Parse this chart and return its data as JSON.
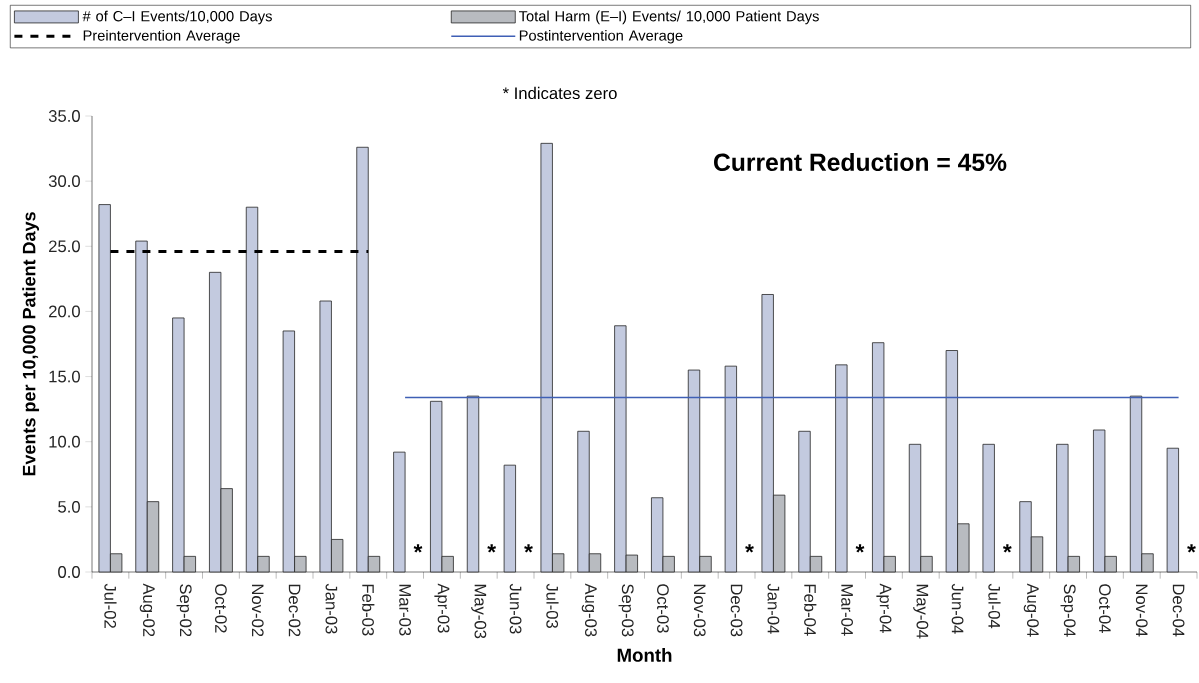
{
  "chart_data": {
    "type": "bar",
    "categories": [
      "Jul-02",
      "Aug-02",
      "Sep-02",
      "Oct-02",
      "Nov-02",
      "Dec-02",
      "Jan-03",
      "Feb-03",
      "Mar-03",
      "Apr-03",
      "May-03",
      "Jun-03",
      "Jul-03",
      "Aug-03",
      "Sep-03",
      "Oct-03",
      "Nov-03",
      "Dec-03",
      "Jan-04",
      "Feb-04",
      "Mar-04",
      "Apr-04",
      "May-04",
      "Jun-04",
      "Jul-04",
      "Aug-04",
      "Sep-04",
      "Oct-04",
      "Nov-04",
      "Dec-04"
    ],
    "series": [
      {
        "name": "# of C–I Events/10,000 Days",
        "color": "#c3cadf",
        "values": [
          28.2,
          25.4,
          19.5,
          23.0,
          28.0,
          18.5,
          20.8,
          32.6,
          9.2,
          13.1,
          13.5,
          8.2,
          32.9,
          10.8,
          18.9,
          5.7,
          15.5,
          15.8,
          21.3,
          10.8,
          15.9,
          17.6,
          9.8,
          17.0,
          9.8,
          5.4,
          9.8,
          10.9,
          13.5,
          9.5
        ]
      },
      {
        "name": "Total Harm (E–I) Events/ 10,000 Patient Days",
        "color": "#b8bbc0",
        "values": [
          1.4,
          5.4,
          1.2,
          6.4,
          1.2,
          1.2,
          2.5,
          1.2,
          0,
          1.2,
          0,
          0,
          1.4,
          1.4,
          1.3,
          1.2,
          1.2,
          0,
          5.9,
          1.2,
          0,
          1.2,
          1.2,
          3.7,
          0,
          2.7,
          1.2,
          1.2,
          1.4,
          0
        ]
      },
      {
        "name": "Preintervention Average",
        "type": "line",
        "color": "#000000",
        "line_style": "dashed",
        "values": [
          24.6,
          24.6,
          24.6,
          24.6,
          24.6,
          24.6,
          24.6,
          24.6,
          null,
          null,
          null,
          null,
          null,
          null,
          null,
          null,
          null,
          null,
          null,
          null,
          null,
          null,
          null,
          null,
          null,
          null,
          null,
          null,
          null,
          null
        ]
      },
      {
        "name": "Postintervention Average",
        "type": "line",
        "color": "#3f5fb5",
        "line_style": "solid",
        "values": [
          null,
          null,
          null,
          null,
          null,
          null,
          null,
          null,
          13.4,
          13.4,
          13.4,
          13.4,
          13.4,
          13.4,
          13.4,
          13.4,
          13.4,
          13.4,
          13.4,
          13.4,
          13.4,
          13.4,
          13.4,
          13.4,
          13.4,
          13.4,
          13.4,
          13.4,
          13.4,
          13.4
        ]
      }
    ],
    "ylim": [
      0,
      35
    ],
    "yticks": [
      {
        "value": 0,
        "label": "0.0"
      },
      {
        "value": 5,
        "label": "5.0"
      },
      {
        "value": 10,
        "label": "10.0"
      },
      {
        "value": 15,
        "label": "15.0"
      },
      {
        "value": 20,
        "label": "20.0"
      },
      {
        "value": 25,
        "label": "25.0"
      },
      {
        "value": 30,
        "label": "30.0"
      },
      {
        "value": 35,
        "label": "35.0"
      }
    ],
    "xlabel": "Month",
    "ylabel": "Events per 10,000 Patient Days",
    "legend": "top",
    "annotations": [
      "* Indicates zero",
      "Current Reduction = 45%",
      {
        "text": "*",
        "x": "Mar-03",
        "y": 0
      },
      {
        "text": "*",
        "x": "May-03",
        "y": 0
      },
      {
        "text": "*",
        "x": "Jun-03",
        "y": 0
      },
      {
        "text": "*",
        "x": "Dec-03",
        "y": 0
      },
      {
        "text": "*",
        "x": "Mar-04",
        "y": 0
      },
      {
        "text": "*",
        "x": "Jul-04",
        "y": 0
      },
      {
        "text": "*",
        "x": "Dec-04",
        "y": 0
      }
    ]
  }
}
